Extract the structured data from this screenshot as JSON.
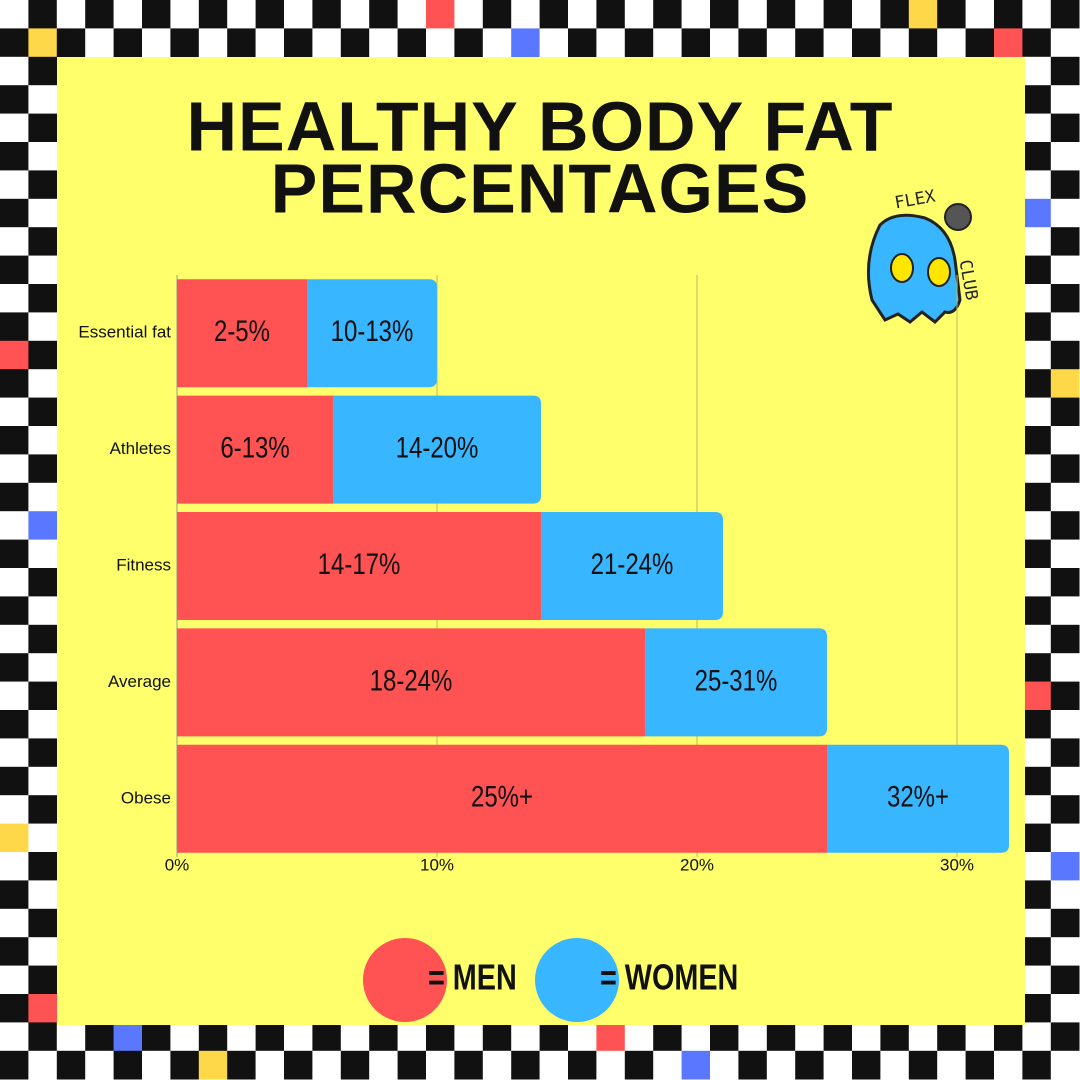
{
  "chart_data": {
    "type": "stacked-barh",
    "title": [
      "HEALTHY BODY FAT",
      "PERCENTAGES"
    ],
    "logo_text": [
      "FLEX",
      "CLUB"
    ],
    "categories": [
      "Essential fat",
      "Athletes",
      "Fitness",
      "Average",
      "Obese"
    ],
    "series": [
      {
        "name": "= MEN",
        "color": "#ff5252",
        "values": [
          5,
          6,
          14,
          18,
          25
        ],
        "value_labels": [
          "2-5%",
          "6-13%",
          "14-17%",
          "18-24%",
          "25%+"
        ]
      },
      {
        "name": "= WOMEN",
        "color": "#38b6ff",
        "values": [
          5,
          8,
          7,
          7,
          7
        ],
        "value_labels": [
          "10-13%",
          "14-20%",
          "21-24%",
          "25-31%",
          "32%+"
        ]
      }
    ],
    "xlim": [
      0,
      32
    ],
    "xticks": [
      {
        "value": 0,
        "label": "0%"
      },
      {
        "value": 10,
        "label": "10%"
      },
      {
        "value": 20,
        "label": "20%"
      },
      {
        "value": 30,
        "label": "30%"
      }
    ],
    "grid": true,
    "background": "#ffff6c"
  }
}
